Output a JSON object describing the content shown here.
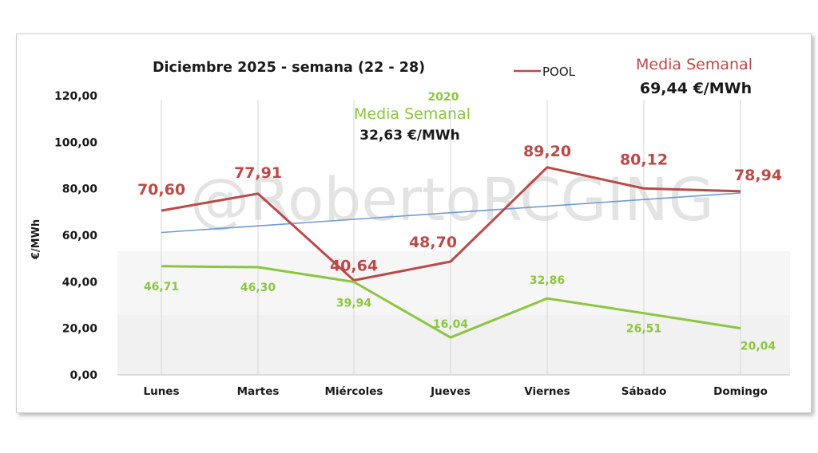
{
  "chart_data": {
    "type": "line",
    "title": "Diciembre 2025 - semana (22 - 28)",
    "ylabel": "€/MWh",
    "xlabel": "",
    "ylim": [
      0,
      120
    ],
    "yticks": [
      "0,00",
      "20,00",
      "40,00",
      "60,00",
      "80,00",
      "100,00",
      "120,00"
    ],
    "categories": [
      "Lunes",
      "Martes",
      "Miércoles",
      "Jueves",
      "Viernes",
      "Sábado",
      "Domingo"
    ],
    "series": [
      {
        "name": "POOL",
        "color": "#b94a48",
        "values": [
          70.6,
          77.91,
          40.64,
          48.7,
          89.2,
          80.12,
          78.94
        ],
        "labels": [
          "70,60",
          "77,91",
          "40,64",
          "48,70",
          "89,20",
          "80,12",
          "78,94"
        ]
      },
      {
        "color": "#8cc63f",
        "values": [
          46.71,
          46.3,
          39.94,
          16.04,
          32.86,
          26.51,
          20.04
        ],
        "labels": [
          "46,71",
          "46,30",
          "39,94",
          "16,04",
          "32,86",
          "26,51",
          "20,04"
        ]
      }
    ],
    "trendline": {
      "color": "#6f9bd1",
      "start": 61.2,
      "end": 78.2
    },
    "legend_position": "top-center",
    "grid": "vertical"
  },
  "annotations": {
    "pool_average_label": "Media Semanal",
    "pool_average_value": "69,44 €/MWh",
    "year_2020_label": "2020",
    "year_2020_average_label": "Media Semanal",
    "year_2020_average_value": "32,63 €/MWh",
    "watermark": "@RobertoRCGING"
  },
  "colors": {
    "pool": "#b94a48",
    "y2020": "#8cc63f",
    "trend": "#6f9bd1",
    "text": "#1a1a1a",
    "watermark": "#e3e3e3"
  }
}
